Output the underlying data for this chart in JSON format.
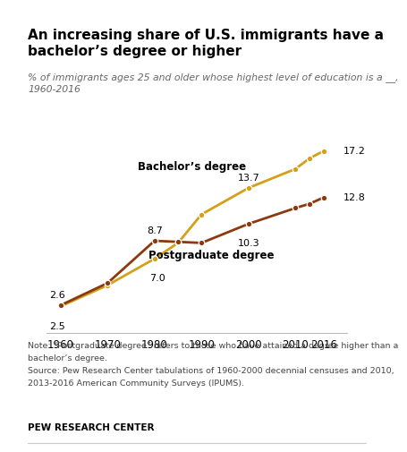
{
  "title": "An increasing share of U.S. immigrants have a\nbachelor’s degree or higher",
  "subtitle": "% of immigrants ages 25 and older whose highest level of education is a __,\n1960-2016",
  "bachelor_years": [
    1960,
    1970,
    1980,
    1985,
    1990,
    2000,
    2010,
    2013,
    2016
  ],
  "bachelor_values": [
    2.5,
    4.5,
    7.0,
    8.5,
    11.2,
    13.7,
    15.5,
    16.5,
    17.2
  ],
  "postgrad_years": [
    1960,
    1970,
    1980,
    1985,
    1990,
    2000,
    2010,
    2013,
    2016
  ],
  "postgrad_values": [
    2.6,
    4.7,
    8.7,
    8.6,
    8.5,
    10.3,
    11.8,
    12.2,
    12.8
  ],
  "bachelor_color": "#D4A017",
  "postgrad_color": "#8B3A0F",
  "bachelor_label": "Bachelor’s degree",
  "postgrad_label": "Postgraduate degree",
  "note_line1": "Note: “Postgraduate degree” refers to those who have attained a degree higher than a",
  "note_line2": "bachelor’s degree.",
  "note_line3": "Source: Pew Research Center tabulations of 1960-2000 decennial censuses and 2010,",
  "note_line4": "2013-2016 American Community Surveys (IPUMS).",
  "footer": "PEW RESEARCH CENTER",
  "xlim": [
    1957,
    2021
  ],
  "ylim": [
    0,
    19
  ],
  "xticks": [
    1960,
    1970,
    1980,
    1990,
    2000,
    2010,
    2016
  ],
  "background_color": "#ffffff",
  "top_bar_color": "#cc0000"
}
